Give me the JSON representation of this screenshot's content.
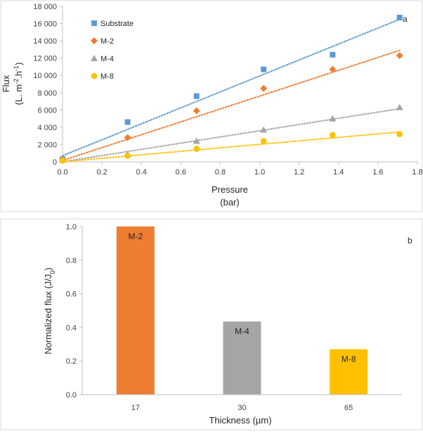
{
  "chart_data": [
    {
      "type": "scatter",
      "panel_letter": "a",
      "xlabel": "Pressure",
      "xlabel_unit": "(bar)",
      "ylabel": "Flux",
      "ylabel_unit_parts": [
        "(L. m",
        "-2",
        ".h",
        "-1",
        ")"
      ],
      "xlim": [
        0,
        1.8
      ],
      "ylim": [
        0,
        18000
      ],
      "xticks": [
        0,
        0.2,
        0.4,
        0.6,
        0.8,
        1.0,
        1.2,
        1.4,
        1.6,
        1.8
      ],
      "xtick_labels": [
        "0.0",
        "0.2",
        "0.4",
        "0.6",
        "0.8",
        "1.0",
        "1.2",
        "1.4",
        "1.6",
        "1.8"
      ],
      "yticks": [
        0,
        2000,
        4000,
        6000,
        8000,
        10000,
        12000,
        14000,
        16000,
        18000
      ],
      "ytick_labels": [
        "0",
        "2 000",
        "4 000",
        "6 000",
        "8 000",
        "10 000",
        "12 000",
        "14 000",
        "16 000",
        "18 000"
      ],
      "legend_position": "top-left",
      "series": [
        {
          "name": "Substrate",
          "marker": "square",
          "color": "#5B9BD5",
          "x": [
            0,
            0.33,
            0.68,
            1.02,
            1.37,
            1.71
          ],
          "y": [
            300,
            4600,
            7600,
            10700,
            12400,
            16700
          ],
          "trend": [
            700,
            16500
          ]
        },
        {
          "name": "M-2",
          "marker": "diamond",
          "color": "#ED7D31",
          "x": [
            0,
            0.33,
            0.68,
            1.02,
            1.37,
            1.71
          ],
          "y": [
            250,
            2800,
            5900,
            8500,
            10700,
            12300
          ],
          "trend": [
            150,
            12900
          ]
        },
        {
          "name": "M-4",
          "marker": "triangle",
          "color": "#A5A5A5",
          "x": [
            0,
            0.33,
            0.68,
            1.02,
            1.37,
            1.71
          ],
          "y": [
            200,
            900,
            2400,
            3700,
            5000,
            6300
          ],
          "trend": [
            0,
            6150
          ]
        },
        {
          "name": "M-8",
          "marker": "circle",
          "color": "#FFC000",
          "x": [
            0,
            0.33,
            0.68,
            1.02,
            1.37,
            1.71
          ],
          "y": [
            150,
            700,
            1500,
            2400,
            3100,
            3200
          ],
          "trend": [
            0,
            3450
          ]
        }
      ]
    },
    {
      "type": "bar",
      "panel_letter": "b",
      "xlabel": "Thickness (µm)",
      "ylabel_parts": [
        "Normalized flux (J/J",
        "0",
        ")"
      ],
      "ylim": [
        0,
        1.0
      ],
      "yticks": [
        0,
        0.2,
        0.4,
        0.6,
        0.8,
        1.0
      ],
      "ytick_labels": [
        "0.0",
        "0.2",
        "0.4",
        "0.6",
        "0.8",
        "1.0"
      ],
      "categories": [
        "17",
        "30",
        "65"
      ],
      "values": [
        1.0,
        0.435,
        0.27
      ],
      "bar_labels": [
        "M-2",
        "M-4",
        "M-8"
      ],
      "colors": [
        "#ED7D31",
        "#A5A5A5",
        "#FFC000"
      ]
    }
  ]
}
